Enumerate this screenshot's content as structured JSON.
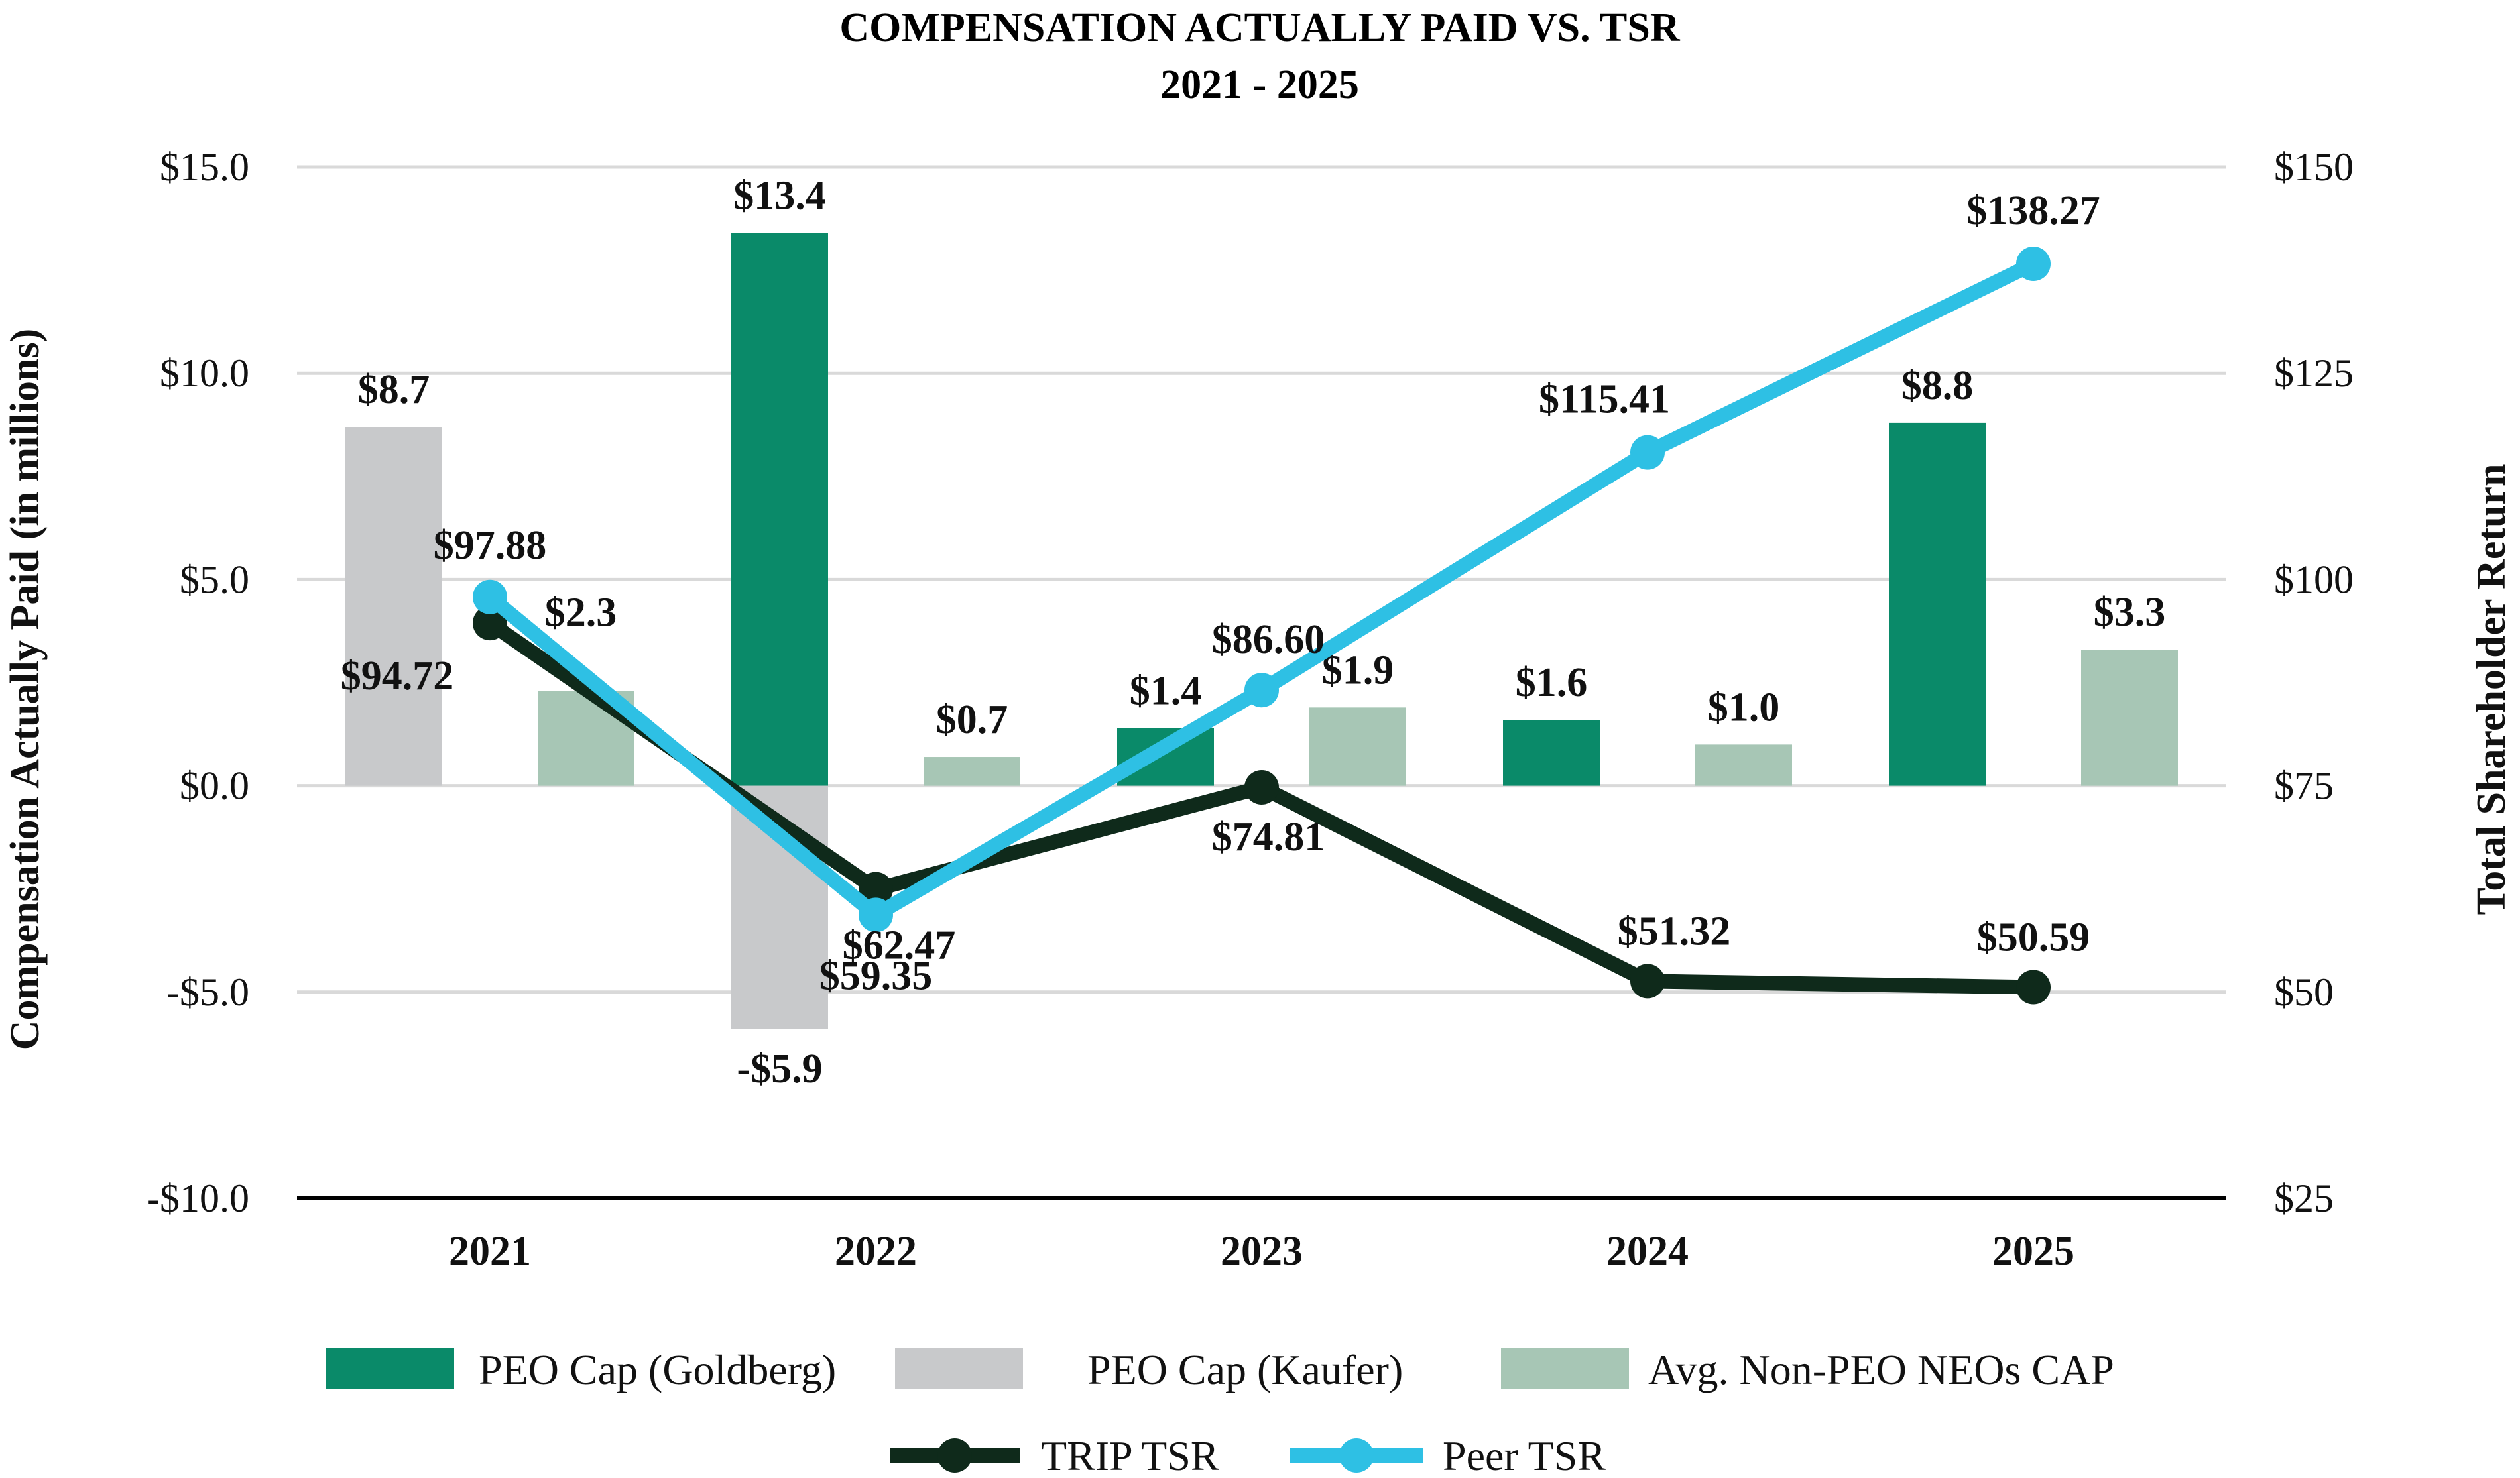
{
  "chart_data": {
    "type": "bar",
    "title": "COMPENSATION ACTUALLY PAID VS. TSR",
    "subtitle": "2021 - 2025",
    "categories": [
      "2021",
      "2022",
      "2023",
      "2024",
      "2025"
    ],
    "y_left": {
      "label": "Compensation Actually Paid (in millions)",
      "range": [
        -10,
        15
      ],
      "ticks": [
        15,
        10,
        5,
        0,
        -5,
        -10
      ],
      "tick_labels": [
        "$15.0",
        "$10.0",
        "$5.0",
        "$0.0",
        "-$5.0",
        "-$10.0"
      ]
    },
    "y_right": {
      "label": "Total Shareholder Return",
      "range": [
        25,
        150
      ],
      "ticks": [
        150,
        125,
        100,
        75,
        50,
        25
      ],
      "tick_labels": [
        "$150",
        "$125",
        "$100",
        "$75",
        "$50",
        "$25"
      ]
    },
    "grid": true,
    "legend_position": "bottom",
    "bar_series": [
      {
        "name": "PEO Cap (Goldberg)",
        "color": "#0a8a69",
        "values": [
          null,
          13.4,
          1.4,
          1.6,
          8.8
        ],
        "labels": [
          "",
          "$13.4",
          "$1.4",
          "$1.6",
          "$8.8"
        ]
      },
      {
        "name": "PEO Cap (Kaufer)",
        "color": "#c8c9cb",
        "values": [
          8.7,
          -5.9,
          null,
          null,
          null
        ],
        "labels": [
          "$8.7",
          "-$5.9",
          "",
          "",
          ""
        ]
      },
      {
        "name": "Avg. Non-PEO NEOs CAP",
        "color": "#a7c6b5",
        "values": [
          2.3,
          0.7,
          1.9,
          1.0,
          3.3
        ],
        "labels": [
          "$2.3",
          "$0.7",
          "$1.9",
          "$1.0",
          "$3.3"
        ]
      }
    ],
    "line_series": [
      {
        "name": "TRIP TSR",
        "color": "#0f2a1b",
        "values": [
          94.72,
          62.47,
          74.81,
          51.32,
          50.59
        ],
        "labels": [
          "$94.72",
          "$62.47",
          "$74.81",
          "$51.32",
          "$50.59"
        ]
      },
      {
        "name": "Peer TSR",
        "color": "#2ec0e4",
        "values": [
          97.88,
          59.35,
          86.6,
          115.41,
          138.27
        ],
        "labels": [
          "$97.88",
          "$59.35",
          "$86.60",
          "$115.41",
          "$138.27"
        ]
      }
    ]
  }
}
